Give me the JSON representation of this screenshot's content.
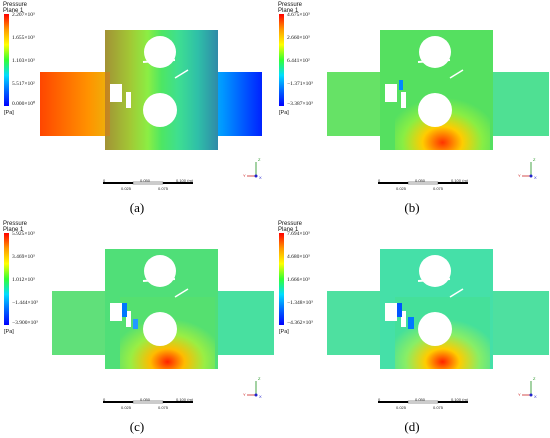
{
  "panels": [
    {
      "legend_title": "Pressure",
      "legend_sub": "Plane 1",
      "ticks": [
        "2.207×10³",
        "1.655×10³",
        "1.103×10³",
        "5.517×10²",
        "0.000×10⁰"
      ],
      "unit": "[Pa]",
      "caption": "(a)",
      "scale": [
        "0",
        "0.050",
        "0.100 (m)",
        "0.025",
        "0.075"
      ]
    },
    {
      "legend_title": "Pressure",
      "legend_sub": "Plane 1",
      "ticks": [
        "4.675×10³",
        "2.660×10³",
        "6.441×10²",
        "−1.371×10³",
        "−3.387×10³"
      ],
      "unit": "[Pa]",
      "caption": "(b)",
      "scale": [
        "0",
        "0.050",
        "0.100 (m)",
        "0.025",
        "0.075"
      ]
    },
    {
      "legend_title": "Pressure",
      "legend_sub": "Plane 1",
      "ticks": [
        "5.925×10³",
        "3.469×10³",
        "1.012×10³",
        "−1.444×10³",
        "−3.900×10³"
      ],
      "unit": "[Pa]",
      "caption": "(c)",
      "scale": [
        "0",
        "0.050",
        "0.100 (m)",
        "0.025",
        "0.075"
      ]
    },
    {
      "legend_title": "Pressure",
      "legend_sub": "Plane 1",
      "ticks": [
        "7.694×10³",
        "4.680×10³",
        "1.666×10³",
        "−1.348×10³",
        "−4.362×10³"
      ],
      "unit": "[Pa]",
      "caption": "(d)",
      "scale": [
        "0",
        "0.050",
        "0.100 (m)",
        "0.025",
        "0.075"
      ]
    }
  ],
  "axis_labels": {
    "y": "Y",
    "z": "Z",
    "x": "X"
  },
  "colors": {
    "field_green": "#55e65a",
    "field_cyan": "#3fe0b0",
    "red": "#ff2200",
    "blue": "#0033ff"
  }
}
